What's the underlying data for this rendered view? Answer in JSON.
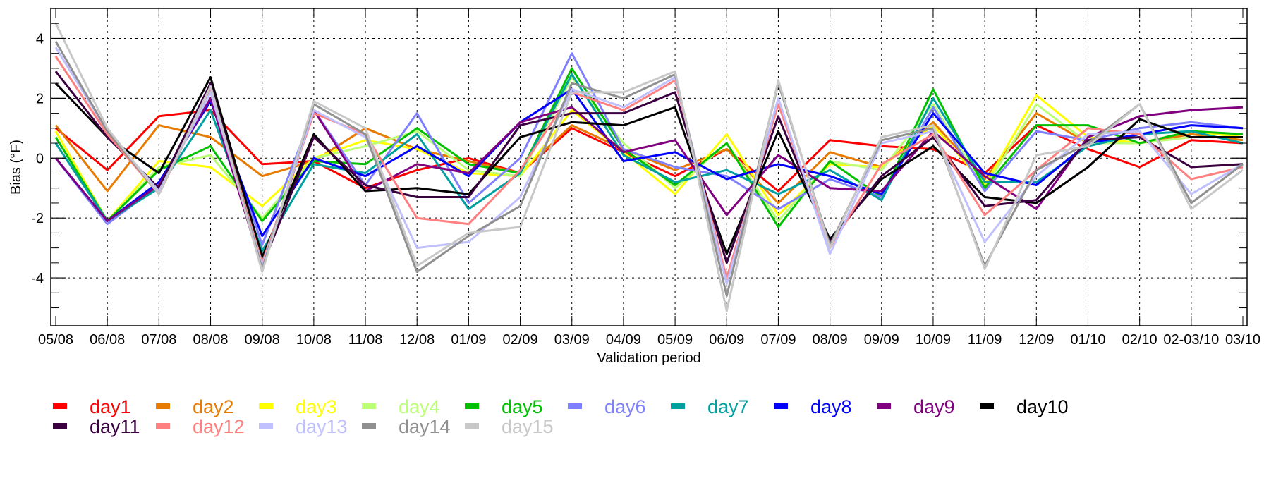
{
  "chart_data": {
    "type": "line",
    "title": "",
    "xlabel": "Validation period",
    "ylabel": "Bias (°F)",
    "categories": [
      "05/08",
      "06/08",
      "07/08",
      "08/08",
      "09/08",
      "10/08",
      "11/08",
      "12/08",
      "01/09",
      "02/09",
      "03/09",
      "04/09",
      "05/09",
      "06/09",
      "07/09",
      "08/09",
      "09/09",
      "10/09",
      "11/09",
      "12/09",
      "01/10",
      "02/10",
      "02-03/10",
      "03/10"
    ],
    "ylim": [
      -5.6,
      5.0
    ],
    "yticks": [
      -4,
      -2,
      0,
      2,
      4
    ],
    "grid": true,
    "legend_position": "bottom",
    "series": [
      {
        "name": "day1",
        "color": "#ff0000",
        "values": [
          1.0,
          -0.4,
          1.4,
          1.6,
          -0.2,
          -0.1,
          -1.0,
          -0.4,
          0.0,
          -0.5,
          1.0,
          0.2,
          -0.6,
          0.3,
          -1.1,
          0.6,
          0.4,
          0.3,
          -0.5,
          1.1,
          0.3,
          -0.3,
          0.6,
          0.5
        ]
      },
      {
        "name": "day2",
        "color": "#e87a00",
        "values": [
          1.1,
          -1.1,
          1.1,
          0.7,
          -0.6,
          -0.1,
          1.0,
          0.3,
          -0.1,
          -0.5,
          1.1,
          0.3,
          -0.4,
          0.3,
          -1.5,
          0.2,
          -0.3,
          1.2,
          -0.7,
          1.5,
          0.5,
          0.5,
          0.8,
          0.6
        ]
      },
      {
        "name": "day3",
        "color": "#ffff00",
        "values": [
          0.9,
          -2.1,
          -0.1,
          -0.3,
          -1.6,
          0.0,
          0.6,
          0.3,
          -0.5,
          -0.6,
          1.6,
          0.2,
          -1.2,
          0.8,
          -1.9,
          -0.2,
          -0.3,
          1.1,
          -0.9,
          2.1,
          0.7,
          0.5,
          0.9,
          0.7
        ]
      },
      {
        "name": "day4",
        "color": "#bbff77",
        "values": [
          0.7,
          -2.1,
          -0.3,
          0.1,
          -2.0,
          0.0,
          0.4,
          0.9,
          -0.4,
          -0.6,
          2.7,
          0.5,
          -1.0,
          0.5,
          -2.1,
          -0.1,
          -0.4,
          1.8,
          -1.0,
          1.8,
          0.5,
          0.5,
          0.7,
          0.7
        ]
      },
      {
        "name": "day5",
        "color": "#00c000",
        "values": [
          0.7,
          -2.1,
          -0.4,
          0.4,
          -2.1,
          -0.1,
          -0.2,
          1.0,
          -0.2,
          -0.5,
          3.0,
          0.3,
          -0.9,
          0.5,
          -2.3,
          -0.1,
          -1.3,
          2.3,
          -1.0,
          1.1,
          1.1,
          0.5,
          0.9,
          0.8
        ]
      },
      {
        "name": "day6",
        "color": "#8080ff",
        "values": [
          0.0,
          -2.2,
          -0.9,
          2.3,
          -2.9,
          1.6,
          -0.9,
          1.5,
          -1.5,
          0.0,
          3.5,
          0.3,
          -0.3,
          -0.6,
          -1.7,
          -0.7,
          -1.3,
          1.7,
          -1.1,
          0.9,
          0.6,
          1.0,
          1.2,
          1.0
        ]
      },
      {
        "name": "day7",
        "color": "#00a0a0",
        "values": [
          0.5,
          -2.1,
          -1.0,
          1.6,
          -3.1,
          -0.2,
          -0.5,
          0.8,
          -1.7,
          -0.5,
          2.8,
          0.1,
          -0.8,
          -0.4,
          -1.2,
          -0.4,
          -1.4,
          2.0,
          -0.8,
          -0.8,
          0.4,
          0.8,
          0.9,
          0.5
        ]
      },
      {
        "name": "day8",
        "color": "#0000ff",
        "values": [
          0.0,
          -2.1,
          -0.8,
          1.9,
          -2.6,
          0.0,
          -0.6,
          0.4,
          -0.6,
          1.2,
          2.3,
          -0.1,
          0.2,
          -0.7,
          -0.2,
          -0.6,
          -1.2,
          1.5,
          -0.5,
          -0.9,
          0.5,
          0.8,
          1.1,
          1.0
        ]
      },
      {
        "name": "day9",
        "color": "#800080",
        "values": [
          0.0,
          -2.1,
          -0.9,
          2.0,
          -3.7,
          1.6,
          -1.1,
          -0.2,
          -0.5,
          1.2,
          1.7,
          0.2,
          0.6,
          -1.9,
          0.1,
          -1.0,
          -1.1,
          0.9,
          -0.6,
          -1.7,
          0.7,
          1.4,
          1.6,
          1.7
        ]
      },
      {
        "name": "day10",
        "color": "#000000",
        "values": [
          2.5,
          0.7,
          -0.5,
          2.7,
          -3.3,
          0.8,
          -1.1,
          -1.0,
          -1.2,
          0.7,
          1.2,
          1.1,
          1.7,
          -3.2,
          0.9,
          -2.7,
          -0.7,
          0.4,
          -1.3,
          -1.5,
          -0.3,
          1.3,
          0.7,
          0.7
        ]
      },
      {
        "name": "day11",
        "color": "#3a0040",
        "values": [
          2.9,
          0.7,
          -1.0,
          2.5,
          -3.6,
          0.7,
          -0.9,
          -1.3,
          -1.3,
          1.1,
          1.5,
          1.5,
          2.2,
          -3.5,
          1.4,
          -2.8,
          -0.6,
          0.7,
          -1.6,
          -1.4,
          0.6,
          0.7,
          -0.3,
          -0.2
        ]
      },
      {
        "name": "day12",
        "color": "#ff8080",
        "values": [
          3.4,
          0.8,
          -1.2,
          2.3,
          -3.5,
          1.5,
          0.8,
          -2.0,
          -2.2,
          -0.4,
          2.2,
          1.6,
          2.6,
          -4.0,
          1.8,
          -3.0,
          -0.2,
          0.8,
          -1.9,
          -0.4,
          1.0,
          0.8,
          -0.7,
          -0.3
        ]
      },
      {
        "name": "day13",
        "color": "#c0c0ff",
        "values": [
          3.7,
          0.9,
          -1.1,
          2.2,
          -3.6,
          1.6,
          0.7,
          -3.0,
          -2.8,
          -1.3,
          2.3,
          1.7,
          2.7,
          -4.2,
          2.0,
          -3.2,
          0.5,
          0.9,
          -2.8,
          -0.6,
          0.8,
          0.9,
          -1.2,
          -0.2
        ]
      },
      {
        "name": "day14",
        "color": "#909090",
        "values": [
          3.9,
          0.9,
          -1.2,
          2.4,
          -3.7,
          1.8,
          0.8,
          -3.8,
          -2.6,
          -1.6,
          2.5,
          2.0,
          2.8,
          -4.6,
          2.5,
          -2.9,
          0.6,
          1.0,
          -3.6,
          -0.4,
          0.5,
          1.8,
          -1.5,
          -0.2
        ]
      },
      {
        "name": "day15",
        "color": "#c8c8c8",
        "values": [
          4.5,
          1.0,
          -1.2,
          2.4,
          -3.8,
          1.9,
          1.0,
          -3.6,
          -2.5,
          -2.3,
          2.2,
          2.2,
          2.9,
          -5.1,
          2.6,
          -3.0,
          0.7,
          1.1,
          -3.7,
          0.1,
          0.4,
          1.8,
          -1.7,
          -0.4
        ]
      }
    ]
  }
}
